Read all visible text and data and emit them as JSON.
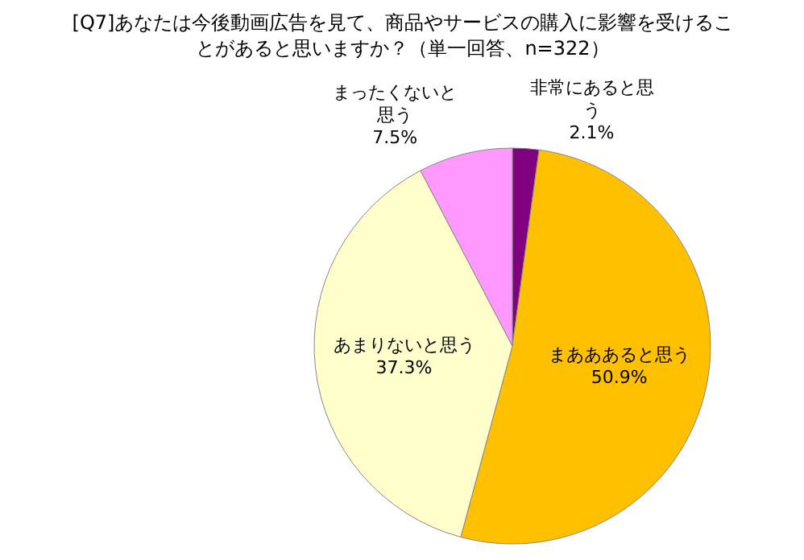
{
  "chart_data": {
    "type": "pie",
    "title": "[Q7]あなたは今後動画広告を見て、商品やサービスの購入に影響を受けることがあると思いますか？（単一回答、n=322）",
    "categories": [
      "非常にあると思う",
      "まあああると思う",
      "あまりないと思う",
      "まったくないと思う"
    ],
    "values": [
      2.1,
      50.9,
      37.3,
      7.5
    ],
    "value_labels": [
      "2.1%",
      "50.9%",
      "37.3%",
      "7.5%"
    ],
    "colors": [
      "#800080",
      "#ffc000",
      "#ffffcc",
      "#ff99ff"
    ]
  }
}
